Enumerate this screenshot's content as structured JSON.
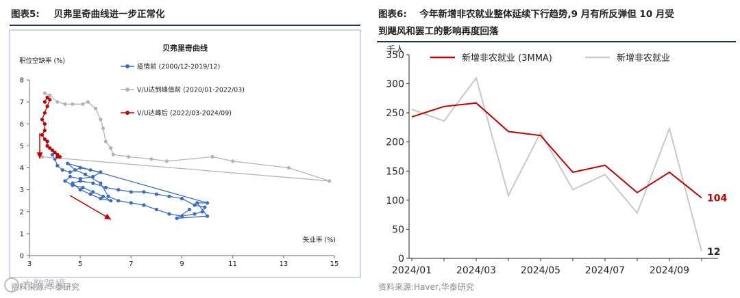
{
  "left_fig": {
    "label": "图表5:",
    "title": "贝弗里奇曲线进一步正常化",
    "source": "资料来源:华泰研究"
  },
  "right_fig": {
    "label": "图表6:",
    "title_line1": "今年新增非农就业整体延续下行趋势,9 月有所反弹但 10 月受",
    "title_line2": "到飓风和罢工的影响再度回落",
    "source": "资料来源:Haver,华泰研究"
  },
  "watermark": "大数跨境",
  "chart_data": [
    {
      "type": "scatter",
      "title": "贝弗里奇曲线",
      "xlabel": "失业率 (%)",
      "ylabel": "职位空缺率 (%)",
      "xlim": [
        3,
        15
      ],
      "ylim": [
        0,
        8
      ],
      "xticks": [
        3,
        5,
        7,
        9,
        11,
        13,
        15
      ],
      "yticks": [
        0,
        1,
        2,
        3,
        4,
        5,
        6,
        7,
        8
      ],
      "legend_position": "upper-middle",
      "grid": false,
      "annotations": [
        "red arrow pointing down-right along the pre-pandemic branch",
        "red arrow pointing down along the post-peak branch"
      ],
      "series": [
        {
          "name": "疫情前 (2000/12-2019/12)",
          "color": "#3b6cc4",
          "points": [
            [
              3.9,
              4.6
            ],
            [
              4.0,
              4.4
            ],
            [
              4.1,
              4.1
            ],
            [
              4.3,
              3.9
            ],
            [
              4.6,
              3.8
            ],
            [
              5.0,
              4.0
            ],
            [
              5.4,
              3.9
            ],
            [
              5.8,
              3.8
            ],
            [
              5.5,
              3.6
            ],
            [
              5.0,
              3.5
            ],
            [
              4.6,
              3.6
            ],
            [
              4.4,
              3.4
            ],
            [
              4.7,
              3.2
            ],
            [
              5.1,
              3.1
            ],
            [
              5.5,
              2.9
            ],
            [
              5.9,
              2.7
            ],
            [
              6.2,
              2.5
            ],
            [
              5.8,
              2.6
            ],
            [
              5.4,
              2.8
            ],
            [
              5.0,
              3.0
            ],
            [
              4.7,
              3.3
            ],
            [
              5.0,
              3.4
            ],
            [
              5.5,
              3.3
            ],
            [
              6.0,
              3.1
            ],
            [
              6.5,
              3.0
            ],
            [
              7.0,
              2.9
            ],
            [
              7.5,
              2.9
            ],
            [
              8.0,
              2.8
            ],
            [
              8.5,
              2.7
            ],
            [
              9.0,
              2.6
            ],
            [
              9.5,
              2.3
            ],
            [
              9.9,
              2.2
            ],
            [
              9.8,
              2.0
            ],
            [
              9.5,
              1.9
            ],
            [
              9.0,
              1.8
            ],
            [
              8.5,
              1.9
            ],
            [
              8.0,
              2.1
            ],
            [
              7.5,
              2.3
            ],
            [
              7.0,
              2.4
            ],
            [
              6.5,
              2.5
            ],
            [
              6.1,
              2.7
            ],
            [
              5.8,
              3.3
            ],
            [
              5.2,
              3.7
            ],
            [
              4.8,
              3.9
            ],
            [
              4.5,
              4.2
            ],
            [
              10.0,
              2.4
            ],
            [
              9.6,
              2.4
            ],
            [
              10.0,
              1.8
            ],
            [
              8.8,
              1.7
            ],
            [
              9.3,
              2.1
            ]
          ]
        },
        {
          "name": "V/U达到峰值前 (2020/01-2022/03)",
          "color": "#b3b3b3",
          "points": [
            [
              3.5,
              4.5
            ],
            [
              14.8,
              3.4
            ],
            [
              13.2,
              4.0
            ],
            [
              11.0,
              4.3
            ],
            [
              10.2,
              4.5
            ],
            [
              8.4,
              4.3
            ],
            [
              7.8,
              4.4
            ],
            [
              6.9,
              4.5
            ],
            [
              6.3,
              4.6
            ],
            [
              6.2,
              4.9
            ],
            [
              6.0,
              5.2
            ],
            [
              5.9,
              5.8
            ],
            [
              5.8,
              6.2
            ],
            [
              5.6,
              6.7
            ],
            [
              5.3,
              7.0
            ],
            [
              5.1,
              6.9
            ],
            [
              4.7,
              6.9
            ],
            [
              4.4,
              6.9
            ],
            [
              4.1,
              7.0
            ],
            [
              3.8,
              7.3
            ],
            [
              3.6,
              7.4
            ]
          ]
        },
        {
          "name": "V/U达峰后 (2022/03-2024/09)",
          "color": "#c00000",
          "points": [
            [
              3.6,
              7.0
            ],
            [
              3.7,
              7.2
            ],
            [
              3.8,
              7.1
            ],
            [
              3.7,
              6.8
            ],
            [
              3.6,
              6.5
            ],
            [
              3.5,
              6.2
            ],
            [
              3.6,
              6.0
            ],
            [
              3.6,
              5.7
            ],
            [
              3.5,
              5.5
            ],
            [
              3.6,
              5.3
            ],
            [
              3.7,
              5.2
            ],
            [
              3.7,
              5.0
            ],
            [
              3.8,
              4.9
            ],
            [
              3.9,
              4.8
            ],
            [
              4.0,
              4.7
            ],
            [
              4.1,
              4.6
            ],
            [
              4.1,
              4.5
            ],
            [
              4.2,
              4.5
            ]
          ]
        }
      ]
    },
    {
      "type": "line",
      "title": "",
      "ylabel": "千人",
      "xlabel": "",
      "categories": [
        "2024/01",
        "2024/02",
        "2024/03",
        "2024/04",
        "2024/05",
        "2024/06",
        "2024/07",
        "2024/08",
        "2024/09",
        "2024/10"
      ],
      "xtick_labels": [
        "2024/01",
        "2024/03",
        "2024/05",
        "2024/07",
        "2024/09"
      ],
      "ylim": [
        0,
        350
      ],
      "yticks": [
        0,
        50,
        100,
        150,
        200,
        250,
        300,
        350
      ],
      "grid": false,
      "legend_position": "top",
      "series": [
        {
          "name": "新增非农就业 (3MMA)",
          "color": "#c00000",
          "values": [
            243,
            261,
            267,
            218,
            211,
            148,
            160,
            113,
            148,
            104
          ],
          "end_label": "104"
        },
        {
          "name": "新增非农就业",
          "color": "#c8c8c8",
          "values": [
            256,
            236,
            310,
            108,
            216,
            118,
            144,
            78,
            223,
            12
          ],
          "end_label": "12"
        }
      ]
    }
  ]
}
